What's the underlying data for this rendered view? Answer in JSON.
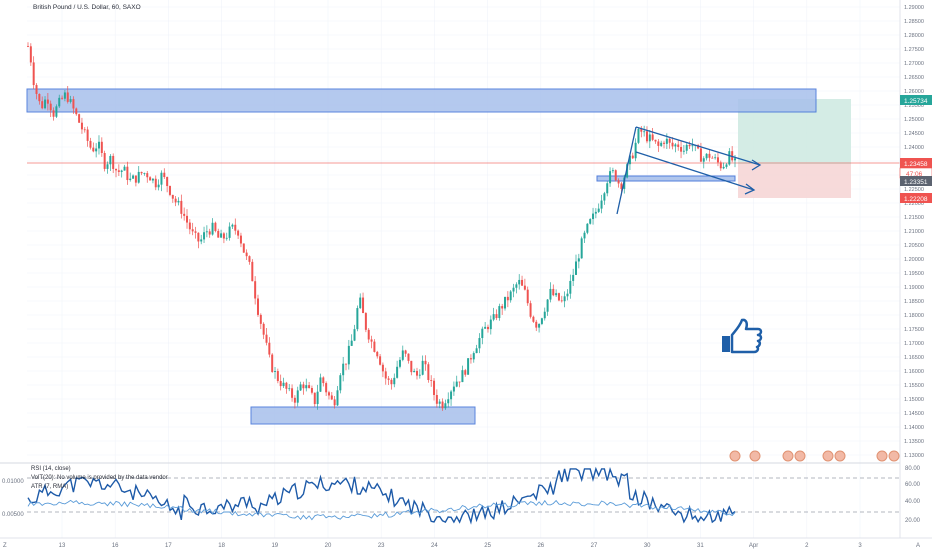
{
  "header": {
    "symbol_title": "British Pound / U.S. Dollar, 60, SAXO"
  },
  "price_axis": {
    "ticks": [
      "1.29000",
      "1.28500",
      "1.28000",
      "1.27500",
      "1.27000",
      "1.26500",
      "1.26000",
      "1.25500",
      "1.25000",
      "1.24500",
      "1.24000",
      "1.23500",
      "1.23000",
      "1.22500",
      "1.22000",
      "1.21500",
      "1.21000",
      "1.20500",
      "1.20000",
      "1.19500",
      "1.19000",
      "1.18500",
      "1.18000",
      "1.17500",
      "1.17000",
      "1.16500",
      "1.16000",
      "1.15500",
      "1.15000",
      "1.14500",
      "1.14000",
      "1.13500",
      "1.13000"
    ],
    "target_label": "1.25734",
    "current_label": "1.23458",
    "countdown_label": "47:06",
    "entry_label": "1.23351",
    "stop_label": "1.22208"
  },
  "time_axis": {
    "labels": [
      "13",
      "16",
      "17",
      "18",
      "19",
      "20",
      "23",
      "24",
      "25",
      "26",
      "27",
      "30",
      "31",
      "Apr",
      "2",
      "3"
    ]
  },
  "indicators": {
    "rsi_label": "RSI (14, close)",
    "vol_label": "VolT(20): No volume is provided by the data vendor",
    "atr_label": "ATR (7, RMA)",
    "rsi_ticks": [
      "80.00",
      "60.00",
      "40.00",
      "20.00"
    ],
    "atr_ticks": [
      "0.01000",
      "0.00500"
    ]
  },
  "corner": {
    "left_bottom": "Z",
    "right_bottom": "A"
  },
  "colors": {
    "up": "#26a69a",
    "down": "#ef5350",
    "zone_fill": "#a8c0ec",
    "zone_border": "#3e6fd8",
    "channel": "#1f5fa8",
    "target_fill": "#cde9e1",
    "stop_fill": "#f6d3d3",
    "rsi_line": "#1d5aa8",
    "atr_line": "#5a9bd8"
  },
  "chart_data": {
    "type": "candlestick",
    "title": "British Pound / U.S. Dollar, 60, SAXO",
    "x_labels": [
      "13",
      "16",
      "17",
      "18",
      "19",
      "20",
      "23",
      "24",
      "25",
      "26",
      "27",
      "30",
      "31",
      "Apr",
      "2",
      "3"
    ],
    "ylim": [
      1.13,
      1.29
    ],
    "price_path": [
      [
        0,
        1.276
      ],
      [
        2,
        1.272
      ],
      [
        5,
        1.262
      ],
      [
        10,
        1.254
      ],
      [
        15,
        1.258
      ],
      [
        20,
        1.252
      ],
      [
        25,
        1.256
      ],
      [
        30,
        1.259
      ],
      [
        35,
        1.254
      ],
      [
        40,
        1.249
      ],
      [
        45,
        1.244
      ],
      [
        50,
        1.239
      ],
      [
        55,
        1.241
      ],
      [
        60,
        1.234
      ],
      [
        65,
        1.236
      ],
      [
        70,
        1.231
      ],
      [
        75,
        1.232
      ],
      [
        80,
        1.228
      ],
      [
        85,
        1.229
      ],
      [
        90,
        1.231
      ],
      [
        95,
        1.23
      ],
      [
        100,
        1.227
      ],
      [
        105,
        1.23
      ],
      [
        110,
        1.226
      ],
      [
        115,
        1.221
      ],
      [
        120,
        1.218
      ],
      [
        125,
        1.213
      ],
      [
        130,
        1.208
      ],
      [
        135,
        1.206
      ],
      [
        140,
        1.21
      ],
      [
        145,
        1.211
      ],
      [
        150,
        1.207
      ],
      [
        155,
        1.208
      ],
      [
        160,
        1.211
      ],
      [
        165,
        1.21
      ],
      [
        170,
        1.202
      ],
      [
        175,
        1.196
      ],
      [
        180,
        1.183
      ],
      [
        185,
        1.173
      ],
      [
        190,
        1.163
      ],
      [
        195,
        1.158
      ],
      [
        200,
        1.155
      ],
      [
        205,
        1.152
      ],
      [
        210,
        1.15
      ],
      [
        215,
        1.156
      ],
      [
        220,
        1.153
      ],
      [
        225,
        1.149
      ],
      [
        230,
        1.158
      ],
      [
        235,
        1.152
      ],
      [
        240,
        1.148
      ],
      [
        245,
        1.16
      ],
      [
        250,
        1.164
      ],
      [
        255,
        1.172
      ],
      [
        260,
        1.186
      ],
      [
        265,
        1.176
      ],
      [
        270,
        1.17
      ],
      [
        275,
        1.166
      ],
      [
        280,
        1.158
      ],
      [
        285,
        1.155
      ],
      [
        290,
        1.162
      ],
      [
        295,
        1.167
      ],
      [
        300,
        1.161
      ],
      [
        305,
        1.158
      ],
      [
        310,
        1.163
      ],
      [
        315,
        1.157
      ],
      [
        320,
        1.15
      ],
      [
        325,
        1.148
      ],
      [
        330,
        1.152
      ],
      [
        335,
        1.156
      ],
      [
        340,
        1.158
      ],
      [
        345,
        1.162
      ],
      [
        350,
        1.168
      ],
      [
        355,
        1.172
      ],
      [
        360,
        1.176
      ],
      [
        365,
        1.178
      ],
      [
        370,
        1.182
      ],
      [
        375,
        1.185
      ],
      [
        380,
        1.188
      ],
      [
        385,
        1.192
      ],
      [
        390,
        1.188
      ],
      [
        395,
        1.18
      ],
      [
        400,
        1.176
      ],
      [
        405,
        1.182
      ],
      [
        410,
        1.188
      ],
      [
        415,
        1.186
      ],
      [
        420,
        1.184
      ],
      [
        425,
        1.19
      ],
      [
        430,
        1.198
      ],
      [
        435,
        1.206
      ],
      [
        440,
        1.212
      ],
      [
        445,
        1.216
      ],
      [
        450,
        1.222
      ],
      [
        455,
        1.229
      ],
      [
        460,
        1.231
      ],
      [
        465,
        1.226
      ],
      [
        470,
        1.232
      ],
      [
        475,
        1.238
      ],
      [
        480,
        1.246
      ],
      [
        485,
        1.244
      ],
      [
        490,
        1.242
      ],
      [
        495,
        1.24
      ],
      [
        500,
        1.243
      ],
      [
        505,
        1.24
      ],
      [
        510,
        1.241
      ],
      [
        515,
        1.239
      ],
      [
        520,
        1.242
      ],
      [
        525,
        1.238
      ],
      [
        530,
        1.236
      ],
      [
        535,
        1.237
      ],
      [
        540,
        1.235
      ],
      [
        545,
        1.233
      ],
      [
        550,
        1.237
      ],
      [
        555,
        1.234
      ]
    ],
    "support_zones": [
      {
        "from": 1.26,
        "to": 1.2525
      },
      {
        "from": 1.1485,
        "to": 1.1425
      },
      {
        "from": 1.2335,
        "to": 1.2312
      }
    ],
    "long_position": {
      "entry": 1.23351,
      "target": 1.25734,
      "stop": 1.22208
    },
    "current_price": 1.23458,
    "rsi_ylim": [
      20,
      80
    ],
    "rsi_levels": [
      70,
      30
    ]
  }
}
